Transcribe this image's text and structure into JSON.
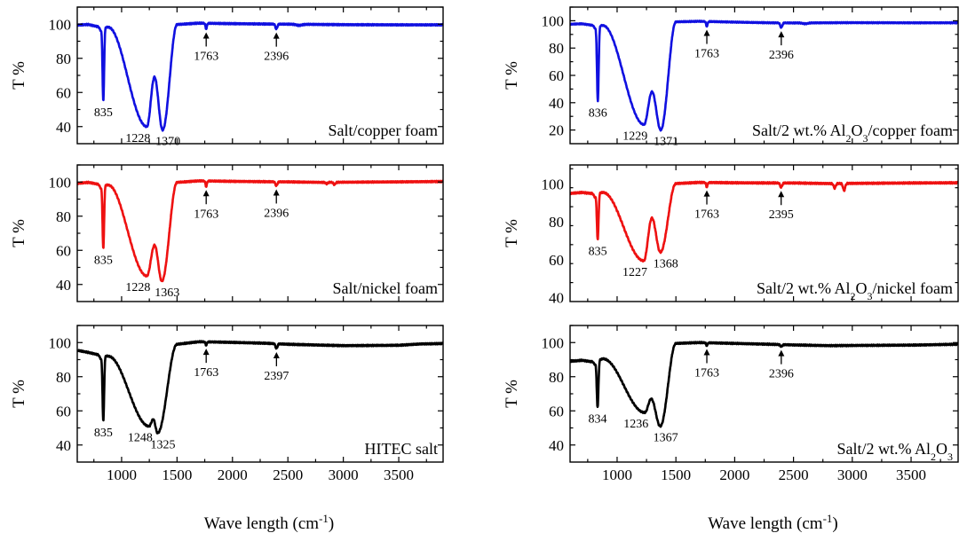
{
  "chart_data": {
    "type": "line",
    "x_axis": {
      "label": "Wave length (cm",
      "label_sup": "-1",
      "label_close": ")",
      "xlim": [
        600,
        3900
      ],
      "ticks": [
        1000,
        1500,
        2000,
        2500,
        3000,
        3500
      ],
      "tick_labels": [
        "1000",
        "1500",
        "2000",
        "2500",
        "3000",
        "3500"
      ]
    },
    "y_label": "T %",
    "panels": [
      {
        "id": "p1",
        "name": "Salt/copper foam",
        "color": "#1010e0",
        "ylim": [
          30,
          110
        ],
        "yticks": [
          40,
          60,
          80,
          100
        ],
        "baseline": [
          [
            600,
            99.5
          ],
          [
            700,
            99.8
          ],
          [
            780,
            98.6
          ]
        ],
        "tail": [
          [
            1500,
            99.8
          ],
          [
            1700,
            100.6
          ],
          [
            2000,
            100.3
          ],
          [
            2300,
            100.1
          ],
          [
            2500,
            100
          ],
          [
            3000,
            99.7
          ],
          [
            3500,
            99.6
          ],
          [
            3900,
            99.6
          ]
        ],
        "spikes": [
          [
            1763,
            97.3,
            18
          ],
          [
            2396,
            97.2,
            24
          ]
        ],
        "bumps": [
          [
            2600,
            99.3,
            70
          ]
        ],
        "sharp": {
          "x": 835,
          "y": 55
        },
        "band": {
          "start": 880,
          "start_y": 98.2,
          "p1": 1228,
          "y1": 40,
          "max_x": 1297,
          "max_y": 69,
          "p2": 1370,
          "y2": 38,
          "end": 1500,
          "end_y": 99.8
        },
        "peaks": [
          {
            "label": "835",
            "x": 835,
            "y": 55
          },
          {
            "label": "1228",
            "x": 1228,
            "y": 40
          },
          {
            "label": "1370",
            "x": 1370,
            "y": 38
          },
          {
            "label": "1763",
            "x": 1763,
            "y": 97.3,
            "arrow": true
          },
          {
            "label": "2396",
            "x": 2396,
            "y": 97.2,
            "arrow": true
          }
        ]
      },
      {
        "id": "p2",
        "name": "Salt/nickel foam",
        "color": "#ee1111",
        "ylim": [
          30,
          110
        ],
        "yticks": [
          40,
          60,
          80,
          100
        ],
        "baseline": [
          [
            600,
            99.2
          ],
          [
            700,
            99.8
          ],
          [
            780,
            98.8
          ]
        ],
        "tail": [
          [
            1500,
            99.8
          ],
          [
            1700,
            100.7
          ],
          [
            2000,
            100.4
          ],
          [
            2300,
            100.2
          ],
          [
            2500,
            100.1
          ],
          [
            2800,
            99.8
          ],
          [
            3000,
            99.9
          ],
          [
            3500,
            100.1
          ],
          [
            3900,
            100.3
          ]
        ],
        "spikes": [
          [
            1763,
            97.4,
            18
          ],
          [
            2396,
            97.8,
            24
          ]
        ],
        "bumps": [
          [
            2850,
            99,
            25
          ],
          [
            2920,
            98.5,
            25
          ]
        ],
        "sharp": {
          "x": 835,
          "y": 61
        },
        "band": {
          "start": 880,
          "start_y": 98.2,
          "p1": 1228,
          "y1": 45,
          "max_x": 1298,
          "max_y": 63,
          "p2": 1363,
          "y2": 42,
          "end": 1500,
          "end_y": 99.8
        },
        "peaks": [
          {
            "label": "835",
            "x": 835,
            "y": 61
          },
          {
            "label": "1228",
            "x": 1228,
            "y": 45
          },
          {
            "label": "1363",
            "x": 1363,
            "y": 42
          },
          {
            "label": "1763",
            "x": 1763,
            "y": 97.4,
            "arrow": true
          },
          {
            "label": "2396",
            "x": 2396,
            "y": 97.8,
            "arrow": true
          }
        ]
      },
      {
        "id": "p3",
        "name": "HITEC salt",
        "color": "#000000",
        "ylim": [
          30,
          110
        ],
        "yticks": [
          40,
          60,
          80,
          100
        ],
        "baseline": [
          [
            600,
            95.5
          ],
          [
            700,
            94.2
          ],
          [
            780,
            93
          ]
        ],
        "tail": [
          [
            1500,
            99
          ],
          [
            1700,
            100.5
          ],
          [
            2000,
            100.1
          ],
          [
            2300,
            99.6
          ],
          [
            2500,
            99
          ],
          [
            2800,
            98.5
          ],
          [
            3000,
            98.2
          ],
          [
            3500,
            98.4
          ],
          [
            3700,
            99.2
          ],
          [
            3900,
            99.4
          ]
        ],
        "spikes": [
          [
            1763,
            98.5,
            18
          ],
          [
            2397,
            96.5,
            24
          ]
        ],
        "bumps": [],
        "sharp": {
          "x": 835,
          "y": 54
        },
        "band": {
          "start": 880,
          "start_y": 92,
          "p1": 1248,
          "y1": 51,
          "max_x": 1286,
          "max_y": 55,
          "p2": 1325,
          "y2": 47,
          "end": 1500,
          "end_y": 99
        },
        "peaks": [
          {
            "label": "835",
            "x": 835,
            "y": 54
          },
          {
            "label": "1248",
            "x": 1248,
            "y": 51
          },
          {
            "label": "1325",
            "x": 1325,
            "y": 47
          },
          {
            "label": "1763",
            "x": 1763,
            "y": 98.5,
            "arrow": true
          },
          {
            "label": "2397",
            "x": 2397,
            "y": 96.5,
            "arrow": true
          }
        ]
      },
      {
        "id": "p4",
        "name": "Salt/2 wt.% Al",
        "name_sub": "2",
        "name_tail": "O",
        "name_sub2": "3",
        "name_end": "/copper foam",
        "color": "#1010e0",
        "ylim": [
          10,
          110
        ],
        "yticks": [
          20,
          40,
          60,
          80,
          100
        ],
        "baseline": [
          [
            600,
            97.5
          ],
          [
            700,
            97.8
          ],
          [
            780,
            96.8
          ]
        ],
        "tail": [
          [
            1500,
            99.2
          ],
          [
            1700,
            99.6
          ],
          [
            2000,
            99
          ],
          [
            2300,
            98.5
          ],
          [
            2500,
            98.4
          ],
          [
            3000,
            98.6
          ],
          [
            3500,
            98.5
          ],
          [
            3900,
            98.5
          ]
        ],
        "spikes": [
          [
            1763,
            96,
            18
          ],
          [
            2396,
            95,
            24
          ]
        ],
        "bumps": [
          [
            2600,
            97.8,
            60
          ]
        ],
        "sharp": {
          "x": 836,
          "y": 41
        },
        "band": {
          "start": 880,
          "start_y": 96.5,
          "p1": 1229,
          "y1": 24,
          "max_x": 1297,
          "max_y": 48,
          "p2": 1371,
          "y2": 20,
          "end": 1500,
          "end_y": 99.2
        },
        "peaks": [
          {
            "label": "836",
            "x": 836,
            "y": 41
          },
          {
            "label": "1229",
            "x": 1229,
            "y": 24
          },
          {
            "label": "1371",
            "x": 1371,
            "y": 20
          },
          {
            "label": "1763",
            "x": 1763,
            "y": 96,
            "arrow": true
          },
          {
            "label": "2396",
            "x": 2396,
            "y": 95,
            "arrow": true
          }
        ]
      },
      {
        "id": "p5",
        "name": "Salt/2 wt.% Al",
        "name_sub": "2",
        "name_tail": "O",
        "name_sub2": "3",
        "name_end": "/nickel foam",
        "color": "#ee1111",
        "ylim": [
          38,
          110
        ],
        "yticks": [
          40,
          60,
          80,
          100
        ],
        "baseline": [
          [
            600,
            95
          ],
          [
            700,
            95.5
          ],
          [
            780,
            95
          ]
        ],
        "tail": [
          [
            1500,
            100.2
          ],
          [
            1700,
            100.8
          ],
          [
            2000,
            100.6
          ],
          [
            2300,
            100.5
          ],
          [
            2500,
            100.5
          ],
          [
            2800,
            100.2
          ],
          [
            3000,
            100.3
          ],
          [
            3500,
            100.5
          ],
          [
            3900,
            100.6
          ]
        ],
        "spikes": [
          [
            1763,
            98.5,
            18
          ],
          [
            2395,
            98.2,
            24
          ]
        ],
        "bumps": [
          [
            2850,
            97.8,
            25
          ],
          [
            2930,
            96.5,
            25
          ]
        ],
        "sharp": {
          "x": 835,
          "y": 70.5
        },
        "band": {
          "start": 880,
          "start_y": 95.5,
          "p1": 1227,
          "y1": 59.5,
          "max_x": 1296,
          "max_y": 82,
          "p2": 1368,
          "y2": 64,
          "end": 1500,
          "end_y": 100.2
        },
        "peaks": [
          {
            "label": "835",
            "x": 835,
            "y": 70.5
          },
          {
            "label": "1227",
            "x": 1227,
            "y": 59.5
          },
          {
            "label": "1368",
            "x": 1368,
            "y": 64
          },
          {
            "label": "1763",
            "x": 1763,
            "y": 98.5,
            "arrow": true
          },
          {
            "label": "2395",
            "x": 2395,
            "y": 98.2,
            "arrow": true
          }
        ]
      },
      {
        "id": "p6",
        "name": "Salt/2 wt.% Al",
        "name_sub": "2",
        "name_tail": "O",
        "name_sub2": "3",
        "name_end": "",
        "color": "#000000",
        "ylim": [
          30,
          110
        ],
        "yticks": [
          40,
          60,
          80,
          100
        ],
        "baseline": [
          [
            600,
            89
          ],
          [
            700,
            89.6
          ],
          [
            780,
            88.8
          ]
        ],
        "tail": [
          [
            1500,
            99.5
          ],
          [
            1700,
            100
          ],
          [
            2000,
            99.5
          ],
          [
            2300,
            99
          ],
          [
            2500,
            98.6
          ],
          [
            2800,
            98.2
          ],
          [
            3000,
            98.3
          ],
          [
            3500,
            98.5
          ],
          [
            3900,
            99
          ]
        ],
        "spikes": [
          [
            1763,
            98.3,
            18
          ],
          [
            2396,
            97.7,
            24
          ]
        ],
        "bumps": [],
        "sharp": {
          "x": 834,
          "y": 62
        },
        "band": {
          "start": 880,
          "start_y": 90.5,
          "p1": 1236,
          "y1": 59,
          "max_x": 1290,
          "max_y": 67,
          "p2": 1367,
          "y2": 51,
          "end": 1500,
          "end_y": 99.5
        },
        "peaks": [
          {
            "label": "834",
            "x": 834,
            "y": 62
          },
          {
            "label": "1236",
            "x": 1236,
            "y": 59
          },
          {
            "label": "1367",
            "x": 1367,
            "y": 51
          },
          {
            "label": "1763",
            "x": 1763,
            "y": 98.3,
            "arrow": true
          },
          {
            "label": "2396",
            "x": 2396,
            "y": 97.7,
            "arrow": true
          }
        ]
      }
    ]
  }
}
